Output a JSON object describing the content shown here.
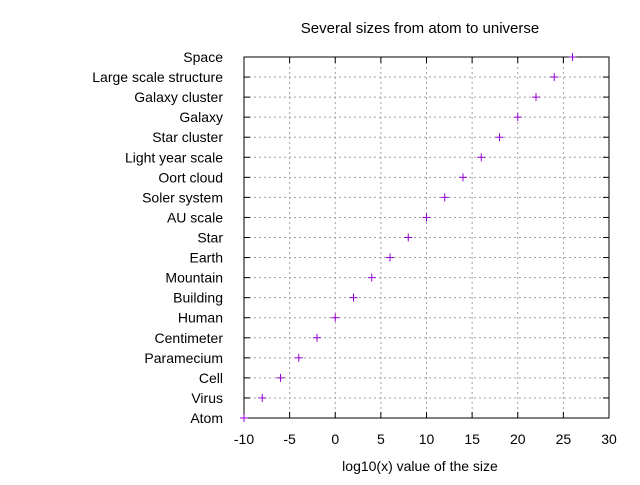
{
  "colors": {
    "background": "#ffffff",
    "axis": "#000000",
    "grid": "#a0a0a0",
    "marker": "#9400d3"
  },
  "chart_data": {
    "type": "scatter",
    "title": "Several sizes from atom to universe",
    "xlabel": "log10(x) value of the size",
    "ylabel": "",
    "xlim": [
      -10,
      30
    ],
    "x_ticks": [
      -10,
      -5,
      0,
      5,
      10,
      15,
      20,
      25,
      30
    ],
    "grid": true,
    "grid_style": "dotted",
    "marker": "plus",
    "legend": "none",
    "categories": [
      "Atom",
      "Virus",
      "Cell",
      "Paramecium",
      "Centimeter",
      "Human",
      "Building",
      "Mountain",
      "Earth",
      "Star",
      "AU scale",
      "Soler system",
      "Oort cloud",
      "Light year scale",
      "Star cluster",
      "Galaxy",
      "Galaxy cluster",
      "Large scale structure",
      "Space"
    ],
    "values": [
      -10,
      -8,
      -6,
      -4,
      -2,
      0,
      2,
      4,
      6,
      8,
      10,
      12,
      14,
      16,
      18,
      20,
      22,
      24,
      26
    ]
  }
}
